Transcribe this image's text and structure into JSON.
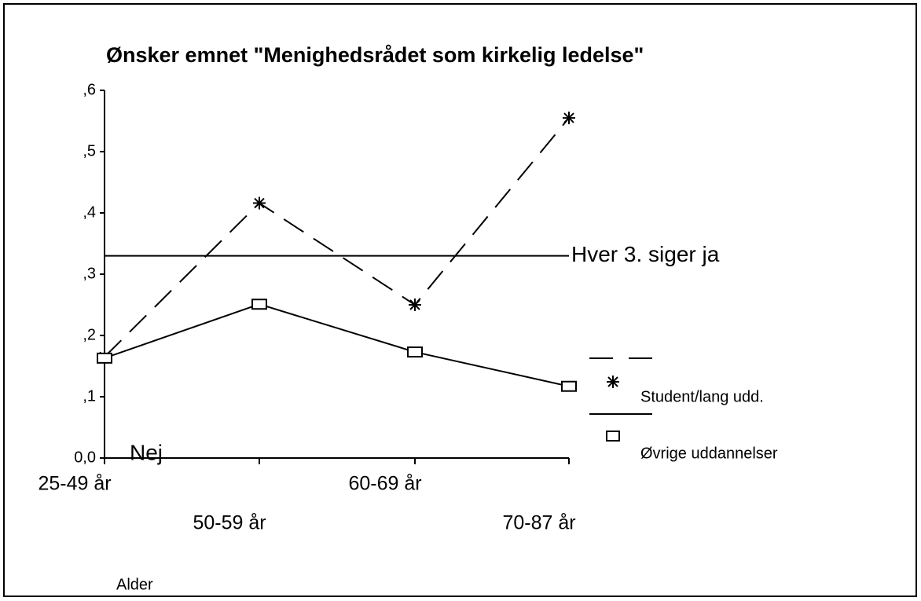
{
  "chart_data": {
    "type": "line",
    "title": "Ønsker emnet \"Menighedsrådet som kirkelig ledelse\"",
    "xlabel": "Alder",
    "categories": [
      "25-49 år",
      "50-59 år",
      "60-69 år",
      "70-87 år"
    ],
    "series": [
      {
        "name": "Student/lang udd.",
        "color": "#000000",
        "dash": true,
        "marker": "star",
        "values": [
          0.165,
          0.416,
          0.25,
          0.555
        ]
      },
      {
        "name": "Øvrige uddannelser",
        "color": "#000000",
        "dash": false,
        "marker": "square",
        "values": [
          0.163,
          0.251,
          0.173,
          0.117
        ]
      }
    ],
    "ylim": [
      0,
      0.6
    ],
    "yticks": [
      {
        "value": 0,
        "label": "0,0"
      },
      {
        "value": 0.1,
        "label": ",1"
      },
      {
        "value": 0.2,
        "label": ",2"
      },
      {
        "value": 0.3,
        "label": ",3"
      },
      {
        "value": 0.4,
        "label": ",4"
      },
      {
        "value": 0.5,
        "label": ",5"
      },
      {
        "value": 0.6,
        "label": ",6"
      }
    ],
    "reference_line": {
      "value": 0.33,
      "label": "Hver 3. siger ja"
    },
    "annotation": "Nej",
    "grid": false
  }
}
